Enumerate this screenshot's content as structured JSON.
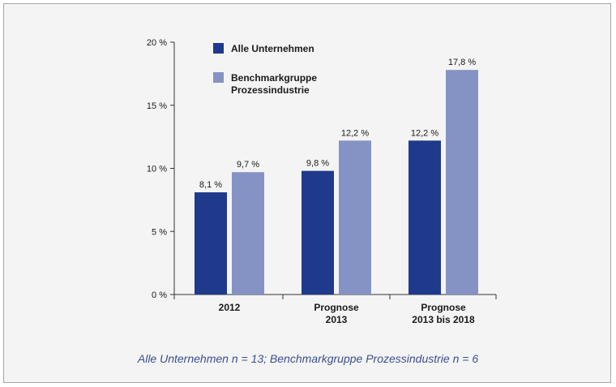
{
  "chart_data": {
    "type": "bar",
    "categories": [
      [
        "2012"
      ],
      [
        "Prognose",
        "2013"
      ],
      [
        "Prognose",
        "2013 bis 2018"
      ]
    ],
    "series": [
      {
        "name": "Alle Unternehmen",
        "values": [
          8.1,
          9.8,
          12.2
        ],
        "labels": [
          "8,1 %",
          "9,8 %",
          "12,2 %"
        ],
        "color": "#1f3a8c"
      },
      {
        "name": "Benchmarkgruppe Prozessindustrie",
        "values": [
          9.7,
          12.2,
          17.8
        ],
        "labels": [
          "9,7 %",
          "12,2 %",
          "17,8 %"
        ],
        "color": "#8593c4"
      }
    ],
    "yticks": [
      "0 %",
      "5 %",
      "10 %",
      "15 %",
      "20 %"
    ],
    "ylim": [
      0,
      20
    ],
    "legend": [
      "Alle Unternehmen",
      [
        "Benchmarkgruppe",
        "Prozessindustrie"
      ]
    ],
    "legend_position": "top-left",
    "caption": "Alle Unternehmen n = 13; Benchmarkgruppe Prozessindustrie n = 6"
  }
}
